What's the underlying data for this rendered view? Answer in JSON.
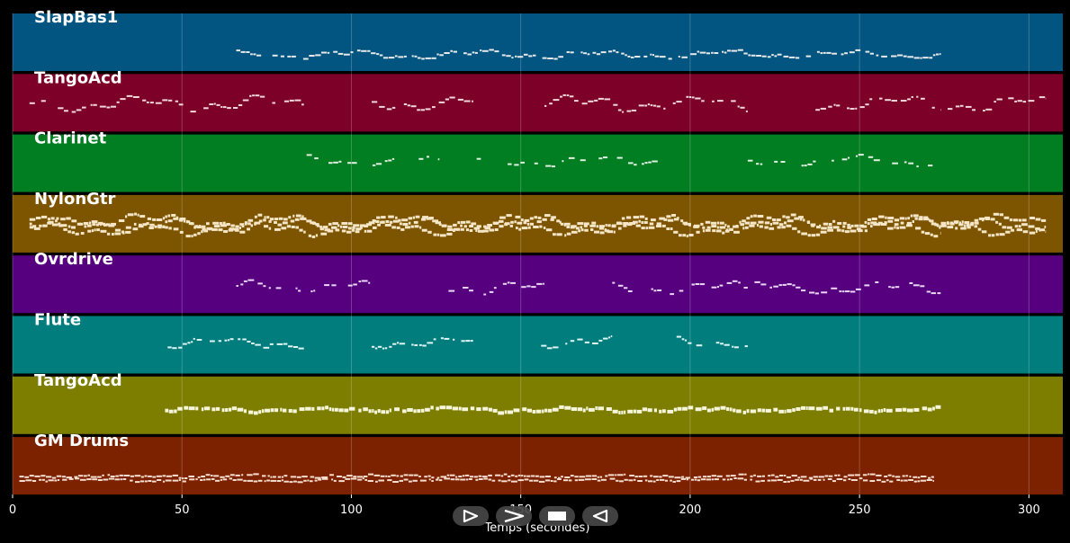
{
  "chart_data": {
    "type": "piano-roll",
    "xlabel": "Temps (secondes)",
    "xlim": [
      0,
      310
    ],
    "xticks": [
      0,
      50,
      100,
      150,
      200,
      250,
      300
    ],
    "grid": true,
    "tracks": [
      {
        "name": "SlapBas1",
        "color": "#015580",
        "note_color": "#e8e8e8",
        "segments": [
          [
            66,
            274
          ]
        ],
        "density": 0.9,
        "mid": 0.7,
        "amp": 0.08,
        "thick": 2,
        "layers": 1
      },
      {
        "name": "TangoAcd",
        "color": "#7d0028",
        "note_color": "#f0d8dc",
        "segments": [
          [
            5,
            86
          ],
          [
            106,
            136
          ],
          [
            157,
            217
          ],
          [
            237,
            274
          ],
          [
            276,
            305
          ]
        ],
        "density": 0.9,
        "mid": 0.5,
        "amp": 0.15,
        "thick": 2,
        "layers": 1
      },
      {
        "name": "Clarinet",
        "color": "#017d22",
        "note_color": "#e0f0e0",
        "segments": [
          [
            86,
            126
          ],
          [
            137,
            196
          ],
          [
            217,
            272
          ]
        ],
        "density": 0.55,
        "mid": 0.45,
        "amp": 0.1,
        "thick": 2,
        "layers": 1
      },
      {
        "name": "NylonGtr",
        "color": "#7d5400",
        "note_color": "#f5e6c8",
        "segments": [
          [
            5,
            45
          ],
          [
            45,
            274
          ],
          [
            274,
            305
          ]
        ],
        "density": 1.0,
        "mid": 0.5,
        "amp": 0.12,
        "thick": 3,
        "layers": 3
      },
      {
        "name": "Ovrdrive",
        "color": "#560080",
        "note_color": "#ead8f5",
        "segments": [
          [
            66,
            86
          ],
          [
            88,
            106
          ],
          [
            127,
            136
          ],
          [
            139,
            157
          ],
          [
            177,
            217
          ],
          [
            219,
            274
          ]
        ],
        "density": 0.75,
        "mid": 0.55,
        "amp": 0.12,
        "thick": 2,
        "layers": 1
      },
      {
        "name": "Flute",
        "color": "#017d7d",
        "note_color": "#e0f5f5",
        "segments": [
          [
            45,
            86
          ],
          [
            106,
            136
          ],
          [
            156,
            177
          ],
          [
            196,
            217
          ]
        ],
        "density": 0.9,
        "mid": 0.45,
        "amp": 0.1,
        "thick": 2,
        "layers": 1
      },
      {
        "name": "TangoAcd",
        "color": "#7d7d00",
        "note_color": "#f5f5dc",
        "segments": [
          [
            45,
            274
          ]
        ],
        "density": 1.0,
        "mid": 0.55,
        "amp": 0.04,
        "thick": 4,
        "layers": 1
      },
      {
        "name": "GM Drums",
        "color": "#7d2200",
        "note_color": "#f5ddd0",
        "segments": [
          [
            2,
            272
          ]
        ],
        "density": 1.0,
        "mid": 0.7,
        "amp": 0.02,
        "thick": 2,
        "layers": 2
      }
    ]
  },
  "transport": {
    "items": [
      {
        "name": "play-icon"
      },
      {
        "name": "forward-icon"
      },
      {
        "name": "stop-icon"
      },
      {
        "name": "back-icon"
      }
    ]
  }
}
